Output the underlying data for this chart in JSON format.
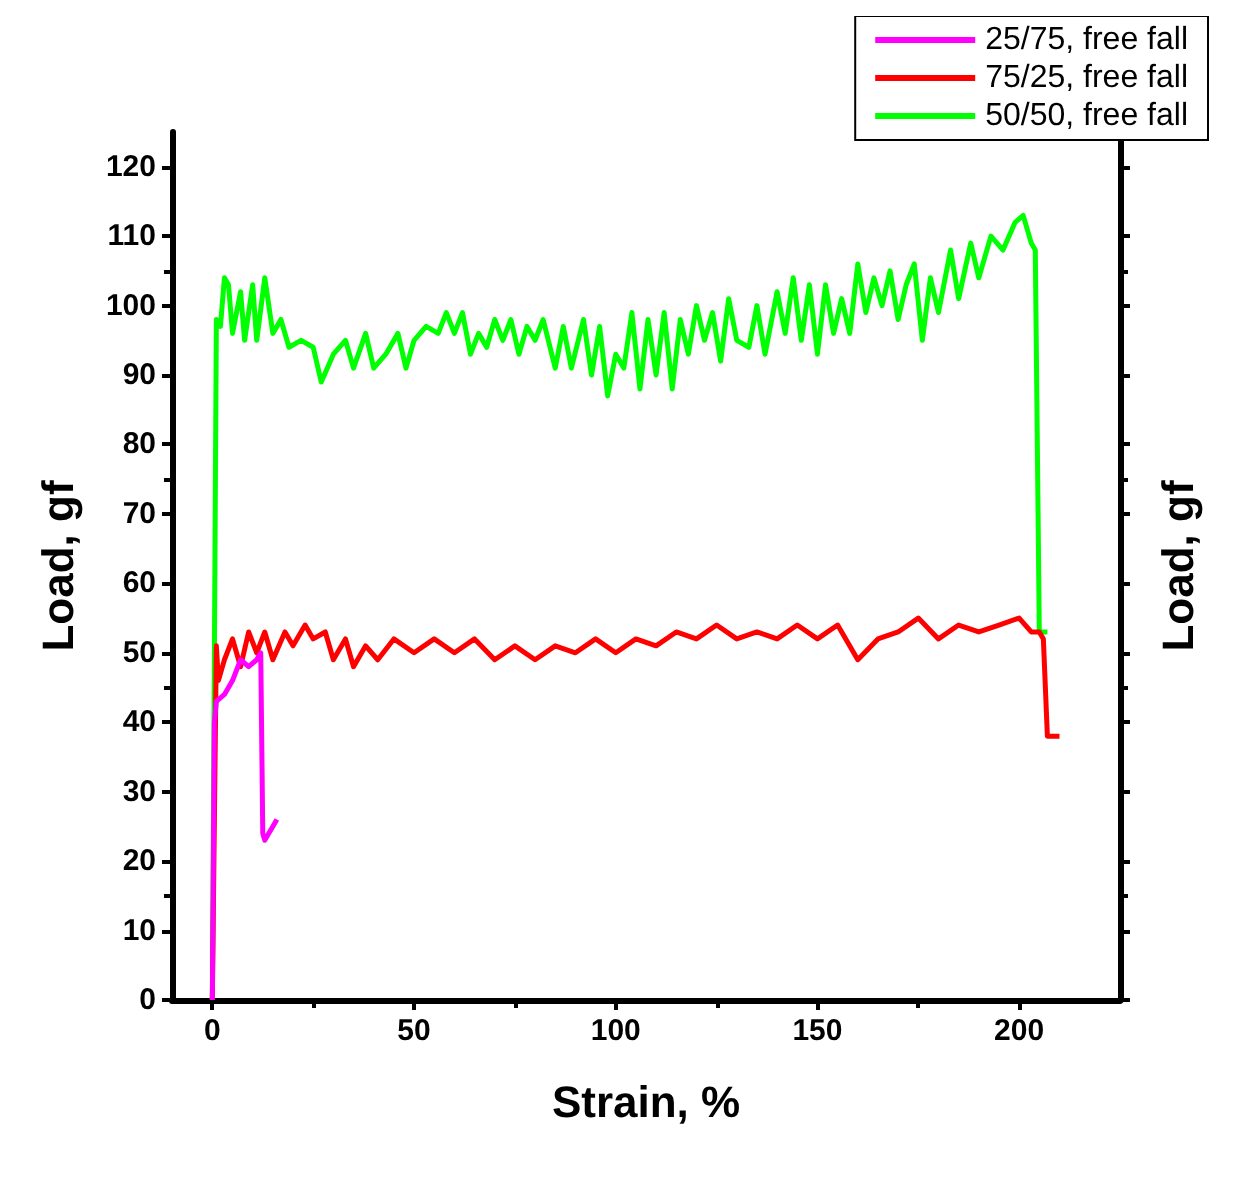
{
  "chart_data": {
    "type": "line",
    "xlabel": "Strain, %",
    "ylabel": "Load, gf",
    "y2label": "Load, gf",
    "xlim": [
      -10,
      225
    ],
    "xticks": [
      0,
      50,
      100,
      150,
      200
    ],
    "ylim": [
      0,
      125
    ],
    "yticks": [
      0,
      10,
      20,
      30,
      40,
      50,
      60,
      70,
      80,
      90,
      100,
      110,
      120
    ],
    "grid": false,
    "legend": "top right",
    "marker": "none",
    "line_style": "solid",
    "series": [
      {
        "name": "25/75, free fall",
        "color": "#ff00ff",
        "x": [
          0,
          0.5,
          1,
          3,
          5,
          7,
          9,
          11,
          12,
          12.5,
          13,
          14,
          15,
          16
        ],
        "values": [
          0,
          40,
          43,
          44,
          46,
          49,
          48,
          49,
          50,
          24,
          23,
          24,
          25,
          26
        ]
      },
      {
        "name": "75/25, free fall",
        "color": "#ff0000",
        "x": [
          0,
          1,
          1.5,
          3,
          5,
          7,
          9,
          11,
          13,
          15,
          18,
          20,
          23,
          25,
          28,
          30,
          33,
          35,
          38,
          41,
          45,
          50,
          55,
          60,
          65,
          70,
          75,
          80,
          85,
          90,
          95,
          100,
          105,
          110,
          115,
          120,
          125,
          130,
          135,
          140,
          145,
          150,
          155,
          160,
          165,
          170,
          175,
          180,
          185,
          190,
          195,
          200,
          203,
          205,
          206,
          207,
          210
        ],
        "values": [
          0,
          51,
          46,
          49,
          52,
          48,
          53,
          50,
          53,
          49,
          53,
          51,
          54,
          52,
          53,
          49,
          52,
          48,
          51,
          49,
          52,
          50,
          52,
          50,
          52,
          49,
          51,
          49,
          51,
          50,
          52,
          50,
          52,
          51,
          53,
          52,
          54,
          52,
          53,
          52,
          54,
          52,
          54,
          49,
          52,
          53,
          55,
          52,
          54,
          53,
          54,
          55,
          53,
          53,
          52,
          38,
          38
        ]
      },
      {
        "name": "50/50, free fall",
        "color": "#00ff00",
        "x": [
          0,
          1,
          2,
          3,
          4,
          5,
          7,
          8,
          10,
          11,
          13,
          15,
          17,
          19,
          22,
          25,
          27,
          30,
          33,
          35,
          38,
          40,
          43,
          46,
          48,
          50,
          53,
          56,
          58,
          60,
          62,
          64,
          66,
          68,
          70,
          72,
          74,
          76,
          78,
          80,
          82,
          85,
          87,
          89,
          92,
          94,
          96,
          98,
          100,
          102,
          104,
          106,
          108,
          110,
          112,
          114,
          116,
          118,
          120,
          122,
          124,
          126,
          128,
          130,
          133,
          135,
          137,
          140,
          142,
          144,
          146,
          148,
          150,
          152,
          154,
          156,
          158,
          160,
          162,
          164,
          166,
          168,
          170,
          172,
          174,
          176,
          178,
          180,
          183,
          185,
          188,
          190,
          193,
          196,
          199,
          201,
          203,
          204,
          205,
          207
        ],
        "values": [
          0,
          98,
          97,
          104,
          103,
          96,
          102,
          95,
          103,
          95,
          104,
          96,
          98,
          94,
          95,
          94,
          89,
          93,
          95,
          91,
          96,
          91,
          93,
          96,
          91,
          95,
          97,
          96,
          99,
          96,
          99,
          93,
          96,
          94,
          98,
          95,
          98,
          93,
          97,
          95,
          98,
          91,
          97,
          91,
          98,
          90,
          97,
          87,
          93,
          91,
          99,
          88,
          98,
          90,
          99,
          88,
          98,
          93,
          100,
          95,
          99,
          92,
          101,
          95,
          94,
          100,
          93,
          102,
          96,
          104,
          95,
          103,
          93,
          103,
          96,
          101,
          96,
          106,
          99,
          104,
          100,
          105,
          98,
          103,
          106,
          95,
          104,
          99,
          108,
          101,
          109,
          104,
          110,
          108,
          112,
          113,
          109,
          108,
          53,
          53
        ]
      }
    ]
  }
}
